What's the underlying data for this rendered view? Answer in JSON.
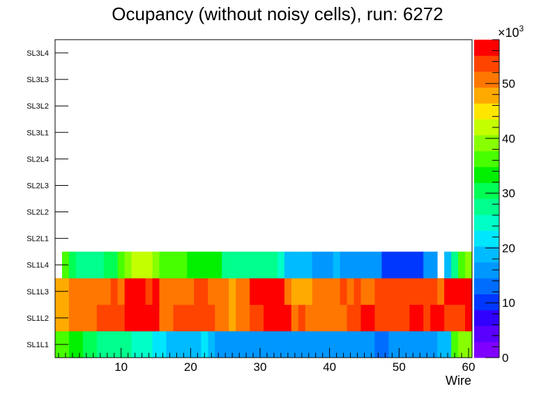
{
  "chart_data": {
    "type": "heatmap",
    "title": "Ocupancy (without noisy cells), run: 6272",
    "xlabel": "Wire",
    "ylabel": "",
    "xlim": [
      0.5,
      60.5
    ],
    "x_ticks": [
      "10",
      "20",
      "30",
      "40",
      "50",
      "60"
    ],
    "x_tick_values": [
      10,
      20,
      30,
      40,
      50,
      60
    ],
    "y_categories": [
      "SL1L1",
      "SL1L2",
      "SL1L3",
      "SL1L4",
      "SL2L1",
      "SL2L2",
      "SL2L3",
      "SL2L4",
      "SL3L1",
      "SL3L2",
      "SL3L3",
      "SL3L4"
    ],
    "z_axis": {
      "range": [
        0,
        58000
      ],
      "ticks": [
        "0",
        "10",
        "20",
        "30",
        "40",
        "50"
      ],
      "tick_values": [
        0,
        10000,
        20000,
        30000,
        40000,
        50000
      ],
      "multiplier": "×10",
      "exponent": "3"
    },
    "palette": [
      "#7f00ff",
      "#5a00ff",
      "#3200ff",
      "#0037ff",
      "#006dff",
      "#0097ff",
      "#00bbff",
      "#00e6ff",
      "#00ffc6",
      "#00ff8c",
      "#00ff55",
      "#00f000",
      "#48ff00",
      "#88ff00",
      "#c4ff00",
      "#ffe600",
      "#ffaa00",
      "#ff7700",
      "#ff4400",
      "#ff0000"
    ],
    "grid": false,
    "legend": "color bar right",
    "rows": [
      {
        "layer": "SL1L1",
        "values": [
          35000,
          35000,
          33000,
          33000,
          31000,
          31000,
          28000,
          28000,
          28000,
          28000,
          28000,
          25000,
          25000,
          25000,
          22000,
          22000,
          19000,
          19000,
          19000,
          19000,
          19000,
          22000,
          19000,
          15000,
          15000,
          15000,
          15000,
          15000,
          15000,
          15000,
          15000,
          15000,
          15000,
          15000,
          15000,
          15000,
          15000,
          15000,
          15000,
          15000,
          15000,
          15000,
          15000,
          15000,
          15000,
          15000,
          12000,
          12000,
          15000,
          15000,
          15000,
          15000,
          15000,
          15000,
          15000,
          19000,
          19000,
          35000,
          38000,
          40000
        ]
      },
      {
        "layer": "SL1L2",
        "values": [
          47000,
          47000,
          51000,
          51000,
          51000,
          51000,
          55000,
          55000,
          55000,
          55000,
          58000,
          58000,
          58000,
          58000,
          58000,
          51000,
          51000,
          55000,
          55000,
          55000,
          55000,
          55000,
          55000,
          51000,
          51000,
          47000,
          51000,
          51000,
          55000,
          55000,
          58000,
          58000,
          58000,
          58000,
          51000,
          55000,
          51000,
          51000,
          51000,
          51000,
          51000,
          51000,
          55000,
          55000,
          58000,
          58000,
          55000,
          55000,
          55000,
          55000,
          55000,
          58000,
          58000,
          55000,
          58000,
          58000,
          55000,
          55000,
          55000,
          58000
        ]
      },
      {
        "layer": "SL1L3",
        "values": [
          47000,
          47000,
          51000,
          51000,
          51000,
          51000,
          51000,
          51000,
          55000,
          51000,
          58000,
          58000,
          58000,
          55000,
          58000,
          51000,
          51000,
          51000,
          51000,
          51000,
          55000,
          55000,
          51000,
          51000,
          51000,
          47000,
          51000,
          51000,
          58000,
          58000,
          58000,
          58000,
          58000,
          51000,
          47000,
          47000,
          47000,
          51000,
          51000,
          51000,
          51000,
          55000,
          51000,
          55000,
          51000,
          51000,
          55000,
          55000,
          55000,
          55000,
          55000,
          55000,
          55000,
          55000,
          55000,
          51000,
          58000,
          58000,
          58000,
          58000
        ]
      },
      {
        "layer": "SL1L4",
        "values": [
          null,
          35000,
          31000,
          28000,
          28000,
          28000,
          28000,
          31000,
          31000,
          36000,
          38000,
          41000,
          41000,
          41000,
          38000,
          36000,
          36000,
          35000,
          35000,
          33000,
          33000,
          33000,
          33000,
          33000,
          28000,
          28000,
          28000,
          28000,
          28000,
          28000,
          28000,
          28000,
          25000,
          19000,
          19000,
          19000,
          19000,
          15000,
          15000,
          15000,
          19000,
          15000,
          15000,
          15000,
          15000,
          15000,
          15000,
          10000,
          10000,
          10000,
          10000,
          10000,
          10000,
          15000,
          15000,
          null,
          19000,
          28000,
          35000,
          38000
        ]
      },
      {
        "layer": "SL2L1",
        "values": []
      },
      {
        "layer": "SL2L2",
        "values": []
      },
      {
        "layer": "SL2L3",
        "values": []
      },
      {
        "layer": "SL2L4",
        "values": []
      },
      {
        "layer": "SL3L1",
        "values": []
      },
      {
        "layer": "SL3L2",
        "values": []
      },
      {
        "layer": "SL3L3",
        "values": []
      },
      {
        "layer": "SL3L4",
        "values": []
      }
    ]
  }
}
